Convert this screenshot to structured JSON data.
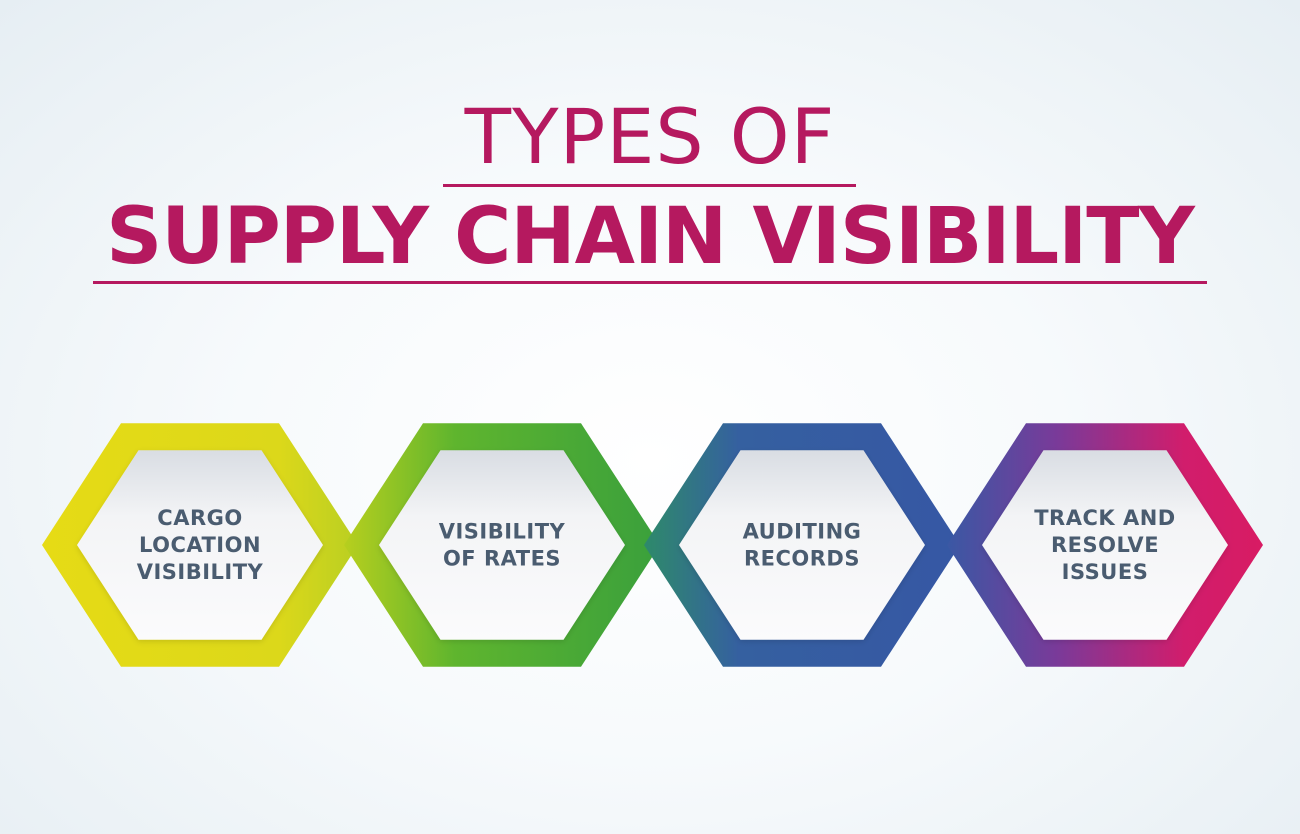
{
  "title": {
    "line1": "TYPES OF",
    "line2": "SUPPLY CHAIN VISIBILITY"
  },
  "colors": {
    "title": "#b5195f",
    "label": "#4a5c70",
    "hex_fill": "#eff1f4",
    "yellow": "#dcd81a",
    "green": "#4bac38",
    "blue": "#3657a4",
    "magenta": "#d11d6c",
    "purple": "#7a3a99"
  },
  "items": [
    {
      "lines": [
        "CARGO",
        "LOCATION",
        "VISIBILITY"
      ]
    },
    {
      "lines": [
        "VISIBILITY",
        "OF RATES"
      ]
    },
    {
      "lines": [
        "AUDITING",
        "RECORDS"
      ]
    },
    {
      "lines": [
        "TRACK AND",
        "RESOLVE",
        "ISSUES"
      ]
    }
  ]
}
